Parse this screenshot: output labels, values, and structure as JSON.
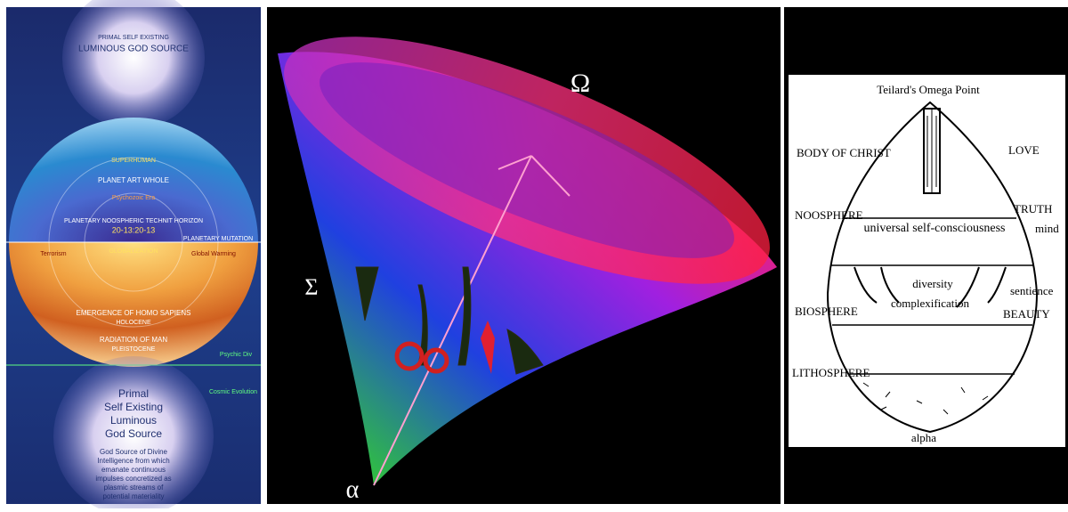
{
  "left_panel": {
    "top_title": [
      "PRIMAL SELF EXISTING",
      "LUMINOUS GOD SOURCE"
    ],
    "bands": [
      "SUPERHUMAN",
      "PLANET ART WHOLE",
      "Psychozoic Era",
      "PLANETARY NOOSPHERIC TECHNIT HORIZON",
      "20-13:20-13",
      "PLANETARY MUTATION",
      "GLOBALIZATION",
      "Terrorism",
      "Global Warming",
      "EMERGENCE OF HOMO SAPIENS",
      "HOLOCENE",
      "RADIATION OF MAN",
      "PLEISTOCENE",
      "Psychic Div"
    ],
    "bottom_title": [
      "Primal",
      "Self Existing",
      "Luminous",
      "God Source"
    ],
    "bottom_text": [
      "God Source of Divine",
      "Intelligence from which",
      "emanate continuous",
      "impulses concretized as",
      "plasmic streams of",
      "potential materiality"
    ],
    "side_title": "Cosmic Evolution"
  },
  "center_panel": {
    "omega": "Ω",
    "sigma": "Σ",
    "alpha": "α"
  },
  "right_panel": {
    "title": "Teilard's Omega Point",
    "labels": [
      "BODY OF CHRIST",
      "LOVE",
      "NOOSPHERE",
      "TRUTH",
      "mind",
      "universal self-consciousness",
      "diversity",
      "complexification",
      "sentience",
      "BIOSPHERE",
      "BEAUTY",
      "LITHOSPHERE",
      "alpha"
    ]
  }
}
